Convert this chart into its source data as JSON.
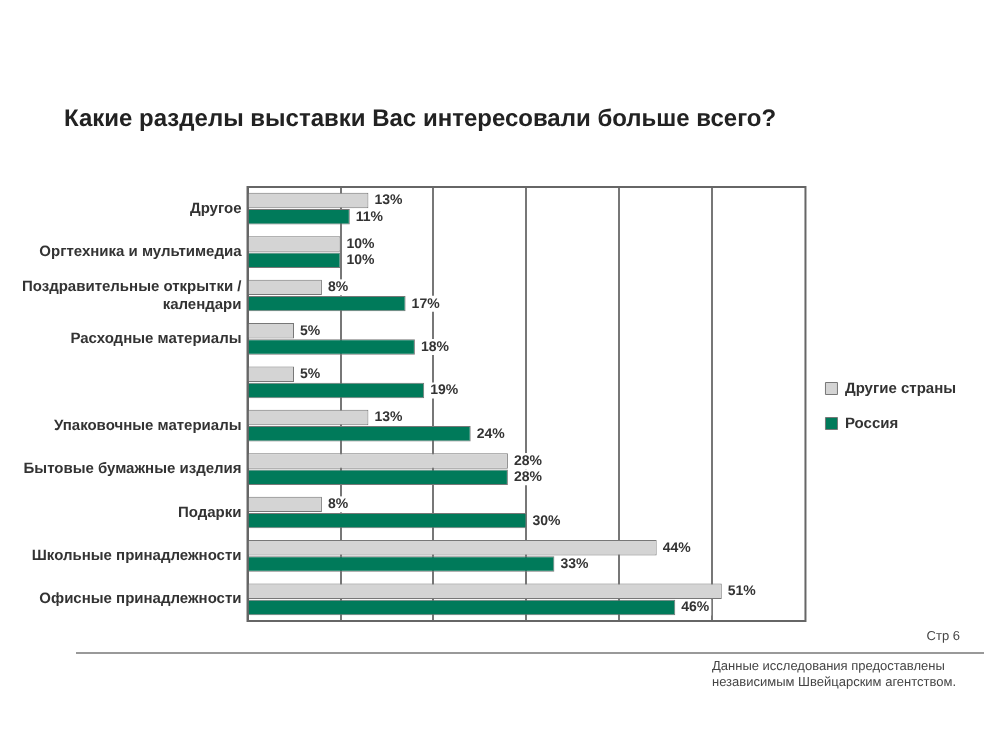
{
  "chart_data": {
    "type": "bar",
    "orientation": "horizontal",
    "title": "Какие разделы выставки Вас интересовали больше всего?",
    "categories": [
      "Другое",
      "Оргтехника и мультимедиа",
      "Поздравительные открытки / календари",
      "Расходные материалы",
      null,
      "Упаковочные материалы",
      "Бытовые бумажные изделия",
      "Подарки",
      "Школьные принадлежности",
      "Офисные принадлежности"
    ],
    "series": [
      {
        "name": "Другие страны",
        "color": "#d4d4d4",
        "values": [
          13,
          10,
          8,
          5,
          5,
          13,
          28,
          8,
          44,
          51
        ],
        "value_labels": [
          "13%",
          "10%",
          "8%",
          "5%",
          "5%",
          "13%",
          "28%",
          "8%",
          "44%",
          "51%"
        ]
      },
      {
        "name": "Россия",
        "color": "#007a5a",
        "values": [
          11,
          10,
          17,
          18,
          19,
          24,
          28,
          30,
          33,
          46
        ],
        "value_labels": [
          "11%",
          "10%",
          "17%",
          "18%",
          "19%",
          "24%",
          "28%",
          "30%",
          "33%",
          "46%"
        ]
      }
    ],
    "xlim": [
      0,
      60
    ],
    "xticks": [
      {
        "value": 0,
        "label": null
      },
      {
        "value": 10,
        "label": null
      },
      {
        "value": 20,
        "label": null
      },
      {
        "value": 30,
        "label": null
      },
      {
        "value": 40,
        "label": null
      },
      {
        "value": 50,
        "label": null
      }
    ],
    "tick_labels": "y",
    "grid": "x",
    "legend": "right",
    "annotations": [
      "Стр 6",
      "Данные исследования предоставлены независимым Швейцарским агентством."
    ]
  }
}
